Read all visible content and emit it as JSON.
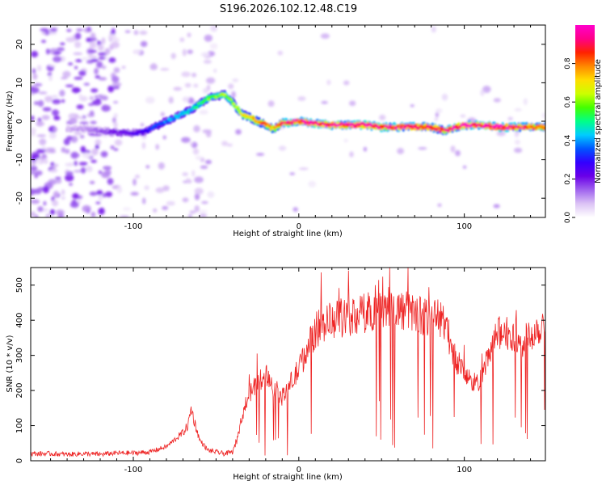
{
  "title": "S196.2026.102.12.48.C19",
  "colors": {
    "snr_line": "#ee2222",
    "axis": "#000000"
  },
  "chart_data": [
    {
      "type": "heatmap",
      "title": "S196.2026.102.12.48.C19",
      "xlabel": "Height of straight line (km)",
      "ylabel": "Frequency (Hz)",
      "xlim": [
        -162,
        149
      ],
      "ylim": [
        -25,
        25
      ],
      "x_ticks": [
        -100,
        0,
        100
      ],
      "x_tick_labels": [
        "-100",
        "0",
        "100"
      ],
      "y_ticks": [
        -20,
        -10,
        0,
        10,
        20
      ],
      "y_tick_labels": [
        "-20",
        "-10",
        "0",
        "10",
        "20"
      ],
      "colorbar": {
        "label": "Normalized spectral amplitude",
        "range": [
          0,
          1
        ],
        "ticks": [
          0,
          0.2,
          0.4,
          0.6,
          0.8
        ],
        "tick_labels": [
          "0.0",
          "0.2",
          "0.4",
          "0.6",
          "0.8"
        ],
        "colormap": [
          "#ffffff",
          "#dcc3f5",
          "#a064ee",
          "#6a00e8",
          "#3300ff",
          "#0055ff",
          "#00ccff",
          "#00ff88",
          "#44ff00",
          "#ccff00",
          "#ffdd00",
          "#ff8800",
          "#ff2200",
          "#ff0088",
          "#ff00cc"
        ]
      },
      "ridge": {
        "x": [
          -162,
          -130,
          -110,
          -95,
          -85,
          -75,
          -65,
          -55,
          -45,
          -40,
          -35,
          -30,
          -25,
          -20,
          -15,
          -10,
          0,
          10,
          20,
          30,
          40,
          50,
          60,
          70,
          80,
          88,
          95,
          100,
          110,
          120,
          130,
          140,
          149
        ],
        "frequency": [
          -2,
          -2,
          -3,
          -3,
          -1,
          1,
          3,
          6,
          7,
          5,
          2,
          1,
          0,
          -1,
          -2,
          -0.5,
          0,
          -0.5,
          -1,
          -1,
          -1,
          -1.5,
          -1.5,
          -1.5,
          -1.5,
          -2.5,
          -1.5,
          -1,
          -1,
          -1.5,
          -1.5,
          -1.5,
          -1.5
        ],
        "amplitude": [
          0.05,
          0.1,
          0.2,
          0.25,
          0.35,
          0.4,
          0.45,
          0.55,
          0.6,
          0.6,
          0.65,
          0.7,
          0.75,
          0.8,
          0.75,
          0.85,
          0.9,
          0.95,
          0.95,
          0.95,
          0.95,
          0.9,
          0.9,
          0.9,
          0.85,
          0.85,
          0.9,
          0.95,
          0.95,
          0.95,
          0.9,
          0.85,
          0.8
        ]
      }
    },
    {
      "type": "line",
      "xlabel": "Height of straight line (km)",
      "ylabel": "SNR (10 * v/v)",
      "xlim": [
        -162,
        149
      ],
      "ylim": [
        0,
        550
      ],
      "x_ticks": [
        -100,
        0,
        100
      ],
      "x_tick_labels": [
        "-100",
        "0",
        "100"
      ],
      "y_ticks": [
        0,
        100,
        200,
        300,
        400,
        500
      ],
      "y_tick_labels": [
        "0",
        "100",
        "200",
        "300",
        "400",
        "500"
      ],
      "series": [
        {
          "name": "SNR",
          "x": [
            -162,
            -150,
            -140,
            -130,
            -120,
            -110,
            -100,
            -90,
            -80,
            -75,
            -70,
            -67,
            -65,
            -63,
            -60,
            -55,
            -50,
            -45,
            -40,
            -37,
            -35,
            -33,
            -30,
            -25,
            -20,
            -15,
            -10,
            -5,
            0,
            5,
            10,
            15,
            20,
            30,
            40,
            50,
            60,
            70,
            80,
            88,
            92,
            95,
            100,
            105,
            110,
            112,
            115,
            120,
            125,
            130,
            135,
            140,
            145,
            149
          ],
          "values": [
            20,
            20,
            18,
            20,
            18,
            22,
            22,
            25,
            40,
            60,
            80,
            100,
            150,
            110,
            60,
            30,
            25,
            20,
            25,
            60,
            110,
            150,
            190,
            220,
            250,
            210,
            180,
            220,
            260,
            320,
            370,
            390,
            400,
            410,
            420,
            440,
            430,
            420,
            410,
            400,
            330,
            290,
            250,
            220,
            230,
            260,
            300,
            360,
            370,
            340,
            330,
            360,
            380,
            400
          ],
          "color": "#ee2222"
        }
      ]
    }
  ]
}
